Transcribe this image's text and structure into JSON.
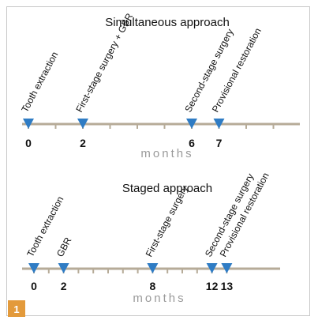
{
  "figure_number": "1",
  "colors": {
    "axis": "#b6ab98",
    "marker": "#2f7cc4",
    "badge": "#e39a3b"
  },
  "panels": [
    {
      "title": "Simultaneous approach",
      "axis_label": "months",
      "axis_max": 10,
      "events": [
        {
          "month": 0,
          "tick_label": "0",
          "label": "Tooth extraction"
        },
        {
          "month": 2,
          "tick_label": "2",
          "label": "First-stage surgery + GBR"
        },
        {
          "month": 6,
          "tick_label": "6",
          "label": "Second-stage surgery"
        },
        {
          "month": 7,
          "tick_label": "7",
          "label": "Provisional restoration"
        }
      ]
    },
    {
      "title": "Staged approach",
      "axis_label": "months",
      "axis_max": 13,
      "events": [
        {
          "month": 0,
          "tick_label": "0",
          "label": "Tooth extraction"
        },
        {
          "month": 2,
          "tick_label": "2",
          "label": "GBR"
        },
        {
          "month": 8,
          "tick_label": "8",
          "label": "First-stage surgery"
        },
        {
          "month": 12,
          "tick_label": "12",
          "label": "Second-stage surgery"
        },
        {
          "month": 13,
          "tick_label": "13",
          "label": "Provisional restoration"
        }
      ]
    }
  ]
}
